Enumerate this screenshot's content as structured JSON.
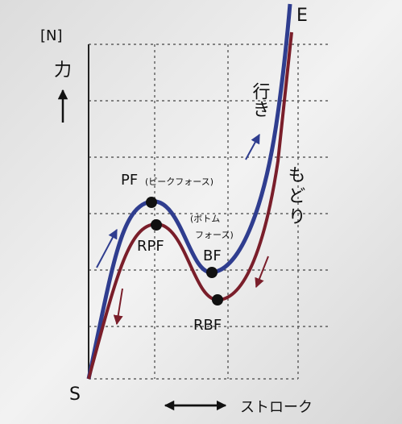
{
  "axis": {
    "y_unit": "[N]",
    "y_label": "力",
    "x_label": "ストローク"
  },
  "points": {
    "start": "S",
    "end": "E",
    "peak": "PF",
    "peak_note": "(ピークフォース)",
    "return_peak": "RPF",
    "bottom": "BF",
    "bottom_note_1": "(ボトム",
    "bottom_note_2": "フォース)",
    "return_bottom": "RBF"
  },
  "curves": {
    "forward": "行き",
    "return": "もどり"
  }
}
